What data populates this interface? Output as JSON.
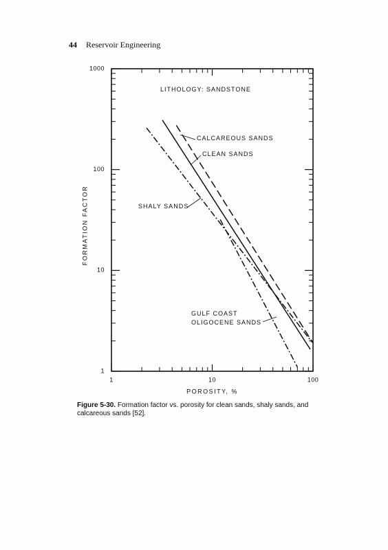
{
  "header": {
    "page_number": "44",
    "title": "Reservoir Engineering"
  },
  "chart_data": {
    "type": "line",
    "annotation": "LITHOLOGY: SANDSTONE",
    "x_label": "POROSITY, %",
    "y_label": "FORMATION FACTOR",
    "xscale": "log",
    "yscale": "log",
    "xlim": [
      1,
      100
    ],
    "ylim": [
      1,
      1000
    ],
    "xticks": [
      1,
      10,
      100
    ],
    "yticks": [
      1,
      10,
      100,
      1000
    ],
    "grid": false,
    "series": [
      {
        "name": "CALCAREOUS SANDS",
        "color": "#111111",
        "style": "dashed",
        "x": [
          4.4,
          100
        ],
        "values": [
          275,
          1.9
        ]
      },
      {
        "name": "CLEAN SANDS",
        "color": "#111111",
        "style": "solid",
        "x": [
          3.2,
          94
        ],
        "values": [
          310,
          1.65
        ]
      },
      {
        "name": "SHALY SANDS",
        "color": "#111111",
        "style": "dashdot",
        "x": [
          2.23,
          97
        ],
        "values": [
          259,
          1.96
        ]
      },
      {
        "name": "GULF COAST OLIGOCENE SANDS",
        "color": "#111111",
        "style": "dashdot",
        "x": [
          12,
          70
        ],
        "values": [
          32,
          1.1
        ]
      }
    ]
  },
  "caption": {
    "label": "Figure 5-30.",
    "text": "Formation factor vs. porosity for clean sands, shaly sands, and calcareous sands [52]."
  }
}
